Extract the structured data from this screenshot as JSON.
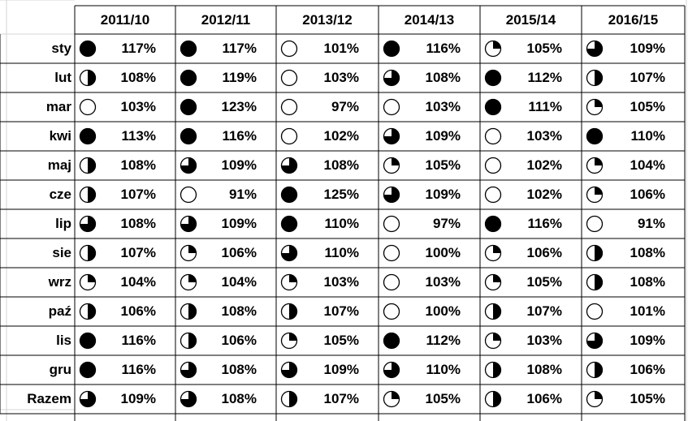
{
  "table": {
    "columns": [
      "2011/10",
      "2012/11",
      "2013/12",
      "2014/13",
      "2015/14",
      "2016/15"
    ],
    "rows": [
      {
        "label": "sty",
        "cells": [
          {
            "v": "117%",
            "q": 4
          },
          {
            "v": "117%",
            "q": 4
          },
          {
            "v": "101%",
            "q": 0
          },
          {
            "v": "116%",
            "q": 4
          },
          {
            "v": "105%",
            "q": 1
          },
          {
            "v": "109%",
            "q": 3
          }
        ]
      },
      {
        "label": "lut",
        "cells": [
          {
            "v": "108%",
            "q": 2
          },
          {
            "v": "119%",
            "q": 4
          },
          {
            "v": "103%",
            "q": 0
          },
          {
            "v": "108%",
            "q": 3
          },
          {
            "v": "112%",
            "q": 4
          },
          {
            "v": "107%",
            "q": 2
          }
        ]
      },
      {
        "label": "mar",
        "cells": [
          {
            "v": "103%",
            "q": 0
          },
          {
            "v": "123%",
            "q": 4
          },
          {
            "v": "97%",
            "q": 0
          },
          {
            "v": "103%",
            "q": 0
          },
          {
            "v": "111%",
            "q": 4
          },
          {
            "v": "105%",
            "q": 1
          }
        ]
      },
      {
        "label": "kwi",
        "cells": [
          {
            "v": "113%",
            "q": 4
          },
          {
            "v": "116%",
            "q": 4
          },
          {
            "v": "102%",
            "q": 0
          },
          {
            "v": "109%",
            "q": 3
          },
          {
            "v": "103%",
            "q": 0
          },
          {
            "v": "110%",
            "q": 4
          }
        ]
      },
      {
        "label": "maj",
        "cells": [
          {
            "v": "108%",
            "q": 2
          },
          {
            "v": "109%",
            "q": 3
          },
          {
            "v": "108%",
            "q": 3
          },
          {
            "v": "105%",
            "q": 1
          },
          {
            "v": "102%",
            "q": 0
          },
          {
            "v": "104%",
            "q": 1
          }
        ]
      },
      {
        "label": "cze",
        "cells": [
          {
            "v": "107%",
            "q": 2
          },
          {
            "v": "91%",
            "q": 0
          },
          {
            "v": "125%",
            "q": 4
          },
          {
            "v": "109%",
            "q": 3
          },
          {
            "v": "102%",
            "q": 0
          },
          {
            "v": "106%",
            "q": 1
          }
        ]
      },
      {
        "label": "lip",
        "cells": [
          {
            "v": "108%",
            "q": 3
          },
          {
            "v": "109%",
            "q": 3
          },
          {
            "v": "110%",
            "q": 4
          },
          {
            "v": "97%",
            "q": 0
          },
          {
            "v": "116%",
            "q": 4
          },
          {
            "v": "91%",
            "q": 0
          }
        ]
      },
      {
        "label": "sie",
        "cells": [
          {
            "v": "107%",
            "q": 2
          },
          {
            "v": "106%",
            "q": 1
          },
          {
            "v": "110%",
            "q": 3
          },
          {
            "v": "100%",
            "q": 0
          },
          {
            "v": "106%",
            "q": 1
          },
          {
            "v": "108%",
            "q": 2
          }
        ]
      },
      {
        "label": "wrz",
        "cells": [
          {
            "v": "104%",
            "q": 1
          },
          {
            "v": "104%",
            "q": 1
          },
          {
            "v": "103%",
            "q": 1
          },
          {
            "v": "103%",
            "q": 0
          },
          {
            "v": "105%",
            "q": 1
          },
          {
            "v": "108%",
            "q": 2
          }
        ]
      },
      {
        "label": "paź",
        "cells": [
          {
            "v": "106%",
            "q": 2
          },
          {
            "v": "108%",
            "q": 2
          },
          {
            "v": "107%",
            "q": 2
          },
          {
            "v": "100%",
            "q": 0
          },
          {
            "v": "107%",
            "q": 2
          },
          {
            "v": "101%",
            "q": 0
          }
        ]
      },
      {
        "label": "lis",
        "cells": [
          {
            "v": "116%",
            "q": 4
          },
          {
            "v": "106%",
            "q": 2
          },
          {
            "v": "105%",
            "q": 1
          },
          {
            "v": "112%",
            "q": 4
          },
          {
            "v": "103%",
            "q": 1
          },
          {
            "v": "109%",
            "q": 3
          }
        ]
      },
      {
        "label": "gru",
        "cells": [
          {
            "v": "116%",
            "q": 4
          },
          {
            "v": "108%",
            "q": 3
          },
          {
            "v": "109%",
            "q": 3
          },
          {
            "v": "110%",
            "q": 3
          },
          {
            "v": "108%",
            "q": 2
          },
          {
            "v": "106%",
            "q": 2
          }
        ]
      },
      {
        "label": "Razem",
        "cells": [
          {
            "v": "109%",
            "q": 3
          },
          {
            "v": "108%",
            "q": 3
          },
          {
            "v": "107%",
            "q": 2
          },
          {
            "v": "105%",
            "q": 1
          },
          {
            "v": "106%",
            "q": 2
          },
          {
            "v": "105%",
            "q": 1
          }
        ]
      }
    ]
  },
  "colors": {
    "grid_light": "#d4d4d4",
    "border": "#000000",
    "ink": "#000000"
  }
}
